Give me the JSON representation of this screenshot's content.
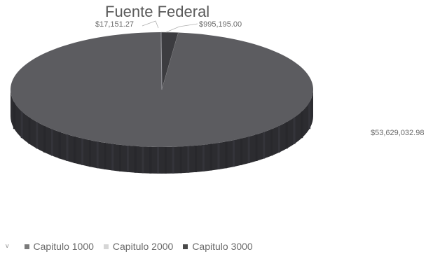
{
  "chart_data": {
    "type": "pie",
    "title": "Fuente Federal",
    "categories": [
      "Capitulo 1000",
      "Capitulo 2000",
      "Capitulo 3000"
    ],
    "values": [
      53629032.98,
      17151.27,
      995195.0
    ],
    "data_labels": [
      "$53,629,032.98",
      "$17,151.27",
      "$995,195.00"
    ],
    "legend_position": "bottom-left",
    "style": "3d"
  },
  "colors": {
    "capitulo_1000": "#5c5c60",
    "capitulo_2000": "#c8c8c8",
    "capitulo_3000": "#3c3c40",
    "legend_capitulo_1000": "#7b7b7b",
    "legend_capitulo_2000": "#d6d6d6",
    "legend_capitulo_3000": "#4a4a4a"
  },
  "legend": {
    "stray_mark": "v",
    "items": [
      "Capitulo 1000",
      "Capitulo 2000",
      "Capitulo 3000"
    ]
  }
}
